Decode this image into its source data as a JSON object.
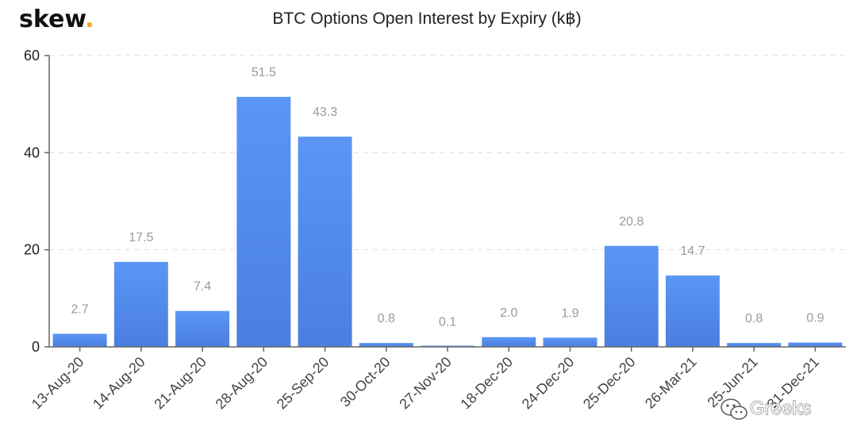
{
  "brand": {
    "name": "skew",
    "dot": ".",
    "dot_color": "#f0a51a"
  },
  "watermark": {
    "text": "Greeks",
    "icon": "wechat-icon"
  },
  "chart_data": {
    "type": "bar",
    "title": "BTC Options Open Interest by Expiry (k฿)",
    "xlabel": "",
    "ylabel": "",
    "categories": [
      "13-Aug-20",
      "14-Aug-20",
      "21-Aug-20",
      "28-Aug-20",
      "25-Sep-20",
      "30-Oct-20",
      "27-Nov-20",
      "18-Dec-20",
      "24-Dec-20",
      "25-Dec-20",
      "26-Mar-21",
      "25-Jun-21",
      "31-Dec-21"
    ],
    "values": [
      2.7,
      17.5,
      7.4,
      51.5,
      43.3,
      0.8,
      0.1,
      2.0,
      1.9,
      20.8,
      14.7,
      0.8,
      0.9
    ],
    "value_labels": [
      "2.7",
      "17.5",
      "7.4",
      "51.5",
      "43.3",
      "0.8",
      "0.1",
      "2.0",
      "1.9",
      "20.8",
      "14.7",
      "0.8",
      "0.9"
    ],
    "ylim": [
      0,
      60
    ],
    "yticks": [
      0,
      20,
      40,
      60
    ],
    "ytick_labels": [
      "0",
      "20",
      "40",
      "60"
    ],
    "grid": true,
    "legend": "none",
    "bar_color_top": "#5b96f5",
    "bar_color_bottom": "#4a7fe0"
  }
}
